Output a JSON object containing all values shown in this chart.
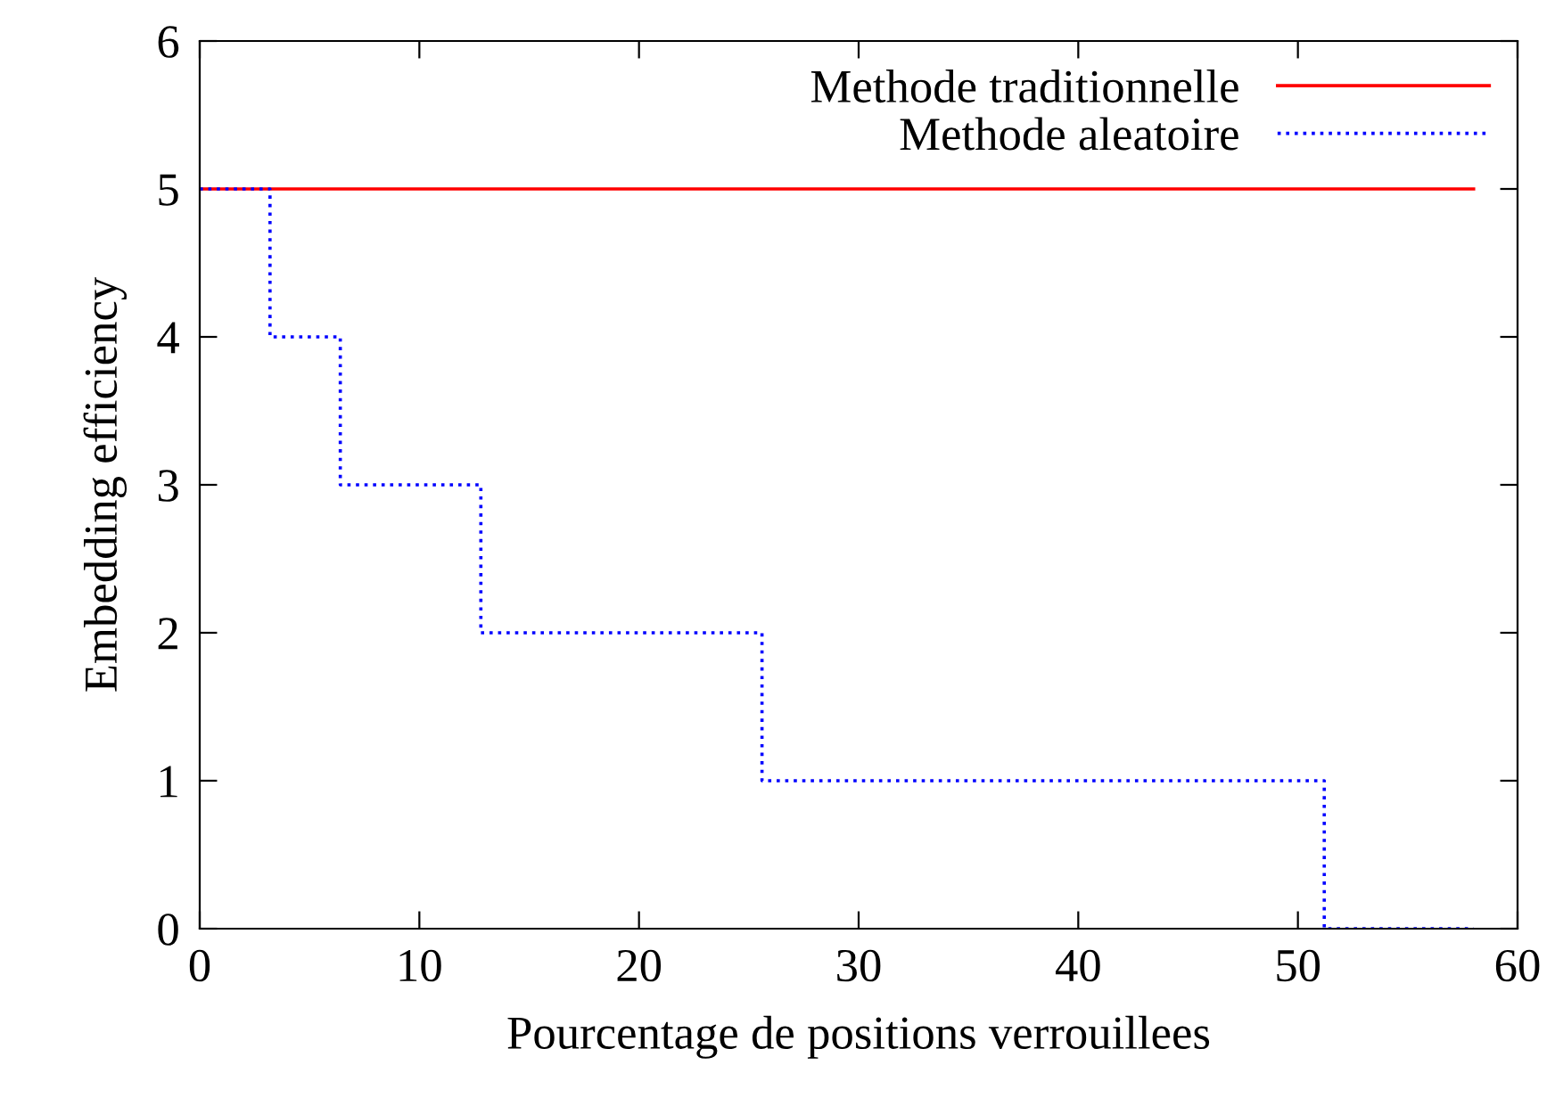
{
  "chart_data": {
    "type": "step",
    "xlabel": "Pourcentage de positions verrouillees",
    "ylabel": "Embedding efficiency",
    "xlim": [
      0,
      60
    ],
    "ylim": [
      0,
      6
    ],
    "xticks": [
      0,
      10,
      20,
      30,
      40,
      50,
      60
    ],
    "yticks": [
      0,
      1,
      2,
      3,
      4,
      5,
      6
    ],
    "grid": false,
    "legend": "top right",
    "series": [
      {
        "name": "Methode traditionnelle",
        "type": "line",
        "color": "#ff0000",
        "line_style": "solid",
        "x": [
          0,
          58
        ],
        "values": [
          5,
          5
        ]
      },
      {
        "name": "Methode aleatoire",
        "color": "#0000ff",
        "line_style": "dotted",
        "x": [
          0,
          3.2,
          6.4,
          12.8,
          25.6,
          51.2,
          58
        ],
        "values": [
          5,
          4,
          3,
          2,
          1,
          0,
          0
        ]
      }
    ]
  }
}
